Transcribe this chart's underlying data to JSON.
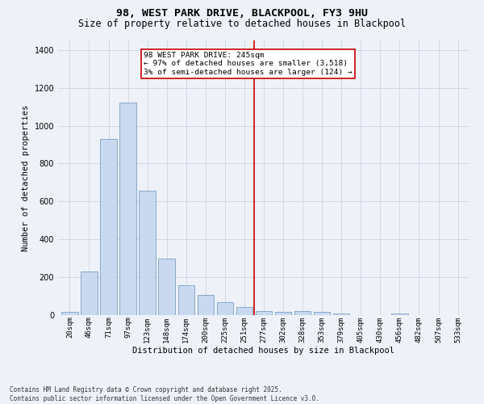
{
  "title": "98, WEST PARK DRIVE, BLACKPOOL, FY3 9HU",
  "subtitle": "Size of property relative to detached houses in Blackpool",
  "xlabel": "Distribution of detached houses by size in Blackpool",
  "ylabel": "Number of detached properties",
  "categories": [
    "20sqm",
    "46sqm",
    "71sqm",
    "97sqm",
    "123sqm",
    "148sqm",
    "174sqm",
    "200sqm",
    "225sqm",
    "251sqm",
    "277sqm",
    "302sqm",
    "328sqm",
    "353sqm",
    "379sqm",
    "405sqm",
    "430sqm",
    "456sqm",
    "482sqm",
    "507sqm",
    "533sqm"
  ],
  "values": [
    15,
    230,
    930,
    1120,
    655,
    300,
    158,
    107,
    70,
    42,
    22,
    18,
    20,
    15,
    8,
    0,
    0,
    10,
    0,
    0,
    0
  ],
  "bar_color": "#c9d9f0",
  "bar_edge_color": "#7aa0c4",
  "grid_color": "#d0d8e8",
  "background_color": "#eef2f8",
  "vline_x": 9.5,
  "vline_color": "#cc0000",
  "annotation_text": "98 WEST PARK DRIVE: 245sqm\n← 97% of detached houses are smaller (3,518)\n3% of semi-detached houses are larger (124) →",
  "annotation_box_color": "#ffffff",
  "annotation_box_edge": "#cc0000",
  "footer_text": "Contains HM Land Registry data © Crown copyright and database right 2025.\nContains public sector information licensed under the Open Government Licence v3.0.",
  "ylim": [
    0,
    1450
  ],
  "title_fontsize": 9.5,
  "subtitle_fontsize": 8.5,
  "tick_fontsize": 6.5,
  "ylabel_fontsize": 7.5,
  "xlabel_fontsize": 7.5,
  "annotation_fontsize": 6.8,
  "footer_fontsize": 5.5
}
